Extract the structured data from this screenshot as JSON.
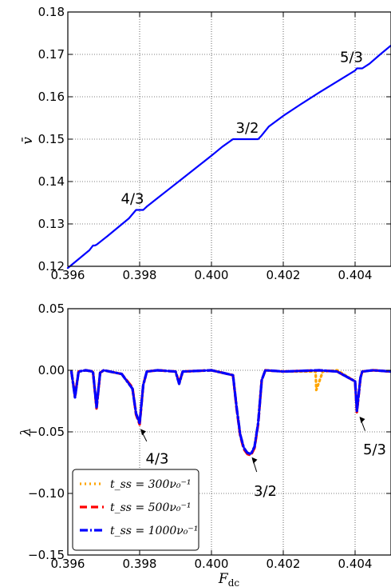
{
  "chart_data": [
    {
      "type": "line",
      "title": "",
      "xlabel": "",
      "ylabel": "v̄",
      "xlim": [
        0.396,
        0.405
      ],
      "ylim": [
        0.12,
        0.18
      ],
      "x_ticks": [
        "0.396",
        "0.398",
        "0.400",
        "0.402",
        "0.404"
      ],
      "y_ticks": [
        "0.12",
        "0.13",
        "0.14",
        "0.15",
        "0.16",
        "0.17",
        "0.18"
      ],
      "grid": true,
      "series": [
        {
          "color": "#0000ff",
          "x": [
            0.396,
            0.3963,
            0.3966,
            0.3967,
            0.39675,
            0.3968,
            0.3971,
            0.3974,
            0.3977,
            0.3979,
            0.39795,
            0.3981,
            0.3982,
            0.3985,
            0.3988,
            0.3991,
            0.3994,
            0.3997,
            0.4,
            0.4003,
            0.4006,
            0.40068,
            0.401,
            0.4013,
            0.40138,
            0.4016,
            0.402,
            0.4025,
            0.403,
            0.4035,
            0.404,
            0.40405,
            0.4042,
            0.4044,
            0.4047,
            0.405
          ],
          "y": [
            0.1196,
            0.1217,
            0.1238,
            0.1249,
            0.1249,
            0.1251,
            0.1271,
            0.1292,
            0.1313,
            0.1333,
            0.1333,
            0.1333,
            0.1341,
            0.1361,
            0.1381,
            0.1401,
            0.1421,
            0.1441,
            0.1461,
            0.1482,
            0.15,
            0.15,
            0.15,
            0.15,
            0.1507,
            0.153,
            0.1555,
            0.1583,
            0.161,
            0.1636,
            0.1662,
            0.1667,
            0.1667,
            0.1678,
            0.17,
            0.1721
          ]
        }
      ],
      "annotations": [
        {
          "text": "4/3",
          "x": 0.3978,
          "y": 0.1348
        },
        {
          "text": "3/2",
          "x": 0.401,
          "y": 0.1515
        },
        {
          "text": "5/3",
          "x": 0.4039,
          "y": 0.1682
        }
      ]
    },
    {
      "type": "line",
      "title": "",
      "xlabel": "F_dc",
      "ylabel": "λ",
      "xlim": [
        0.396,
        0.405
      ],
      "ylim": [
        -0.15,
        0.05
      ],
      "x_ticks": [
        "0.396",
        "0.398",
        "0.400",
        "0.402",
        "0.404"
      ],
      "y_ticks": [
        "−0.15",
        "−0.10",
        "−0.05",
        "0.00",
        "0.05"
      ],
      "grid": true,
      "legend_position": "bottom-left",
      "legend": [
        "t_ss = 300ν₀⁻¹",
        "t_ss = 500ν₀⁻¹",
        "t_ss = 1000ν₀⁻¹"
      ],
      "series": [
        {
          "name": "t_ss = 300ν₀⁻¹",
          "color": "#ffa500",
          "style": "dotted",
          "x": [
            0.3961,
            0.3962,
            0.3963,
            0.3965,
            0.3967,
            0.3968,
            0.3969,
            0.397,
            0.3975,
            0.3978,
            0.3979,
            0.398,
            0.3981,
            0.3982,
            0.3985,
            0.399,
            0.3991,
            0.3992,
            0.4,
            0.4006,
            0.4007,
            0.4008,
            0.4009,
            0.401,
            0.4011,
            0.4012,
            0.4013,
            0.4014,
            0.4015,
            0.402,
            0.4029,
            0.40292,
            0.4031,
            0.4035,
            0.404,
            0.40405,
            0.40415,
            0.4042,
            0.4045,
            0.405
          ],
          "y": [
            -0.001,
            -0.022,
            -0.001,
            0.0,
            -0.001,
            -0.03,
            -0.002,
            0.0,
            -0.003,
            -0.015,
            -0.035,
            -0.043,
            -0.012,
            -0.001,
            0.0,
            -0.001,
            -0.011,
            -0.001,
            0.0,
            -0.004,
            -0.03,
            -0.052,
            -0.063,
            -0.067,
            -0.068,
            -0.062,
            -0.043,
            -0.008,
            0.0,
            -0.001,
            -0.001,
            -0.016,
            -0.001,
            0.0,
            -0.009,
            -0.033,
            -0.006,
            -0.001,
            0.0,
            -0.001
          ]
        },
        {
          "name": "t_ss = 500ν₀⁻¹",
          "color": "#ff0000",
          "style": "dashed",
          "x": [
            0.3961,
            0.3962,
            0.3963,
            0.3965,
            0.3967,
            0.3968,
            0.3969,
            0.397,
            0.3975,
            0.3978,
            0.3979,
            0.398,
            0.3981,
            0.3982,
            0.3985,
            0.399,
            0.3991,
            0.3992,
            0.4,
            0.4006,
            0.4007,
            0.4008,
            0.4009,
            0.401,
            0.4011,
            0.4012,
            0.4013,
            0.4014,
            0.4015,
            0.402,
            0.403,
            0.4035,
            0.404,
            0.40405,
            0.40415,
            0.4042,
            0.4045,
            0.405
          ],
          "y": [
            -0.001,
            -0.021,
            -0.001,
            0.0,
            -0.001,
            -0.031,
            -0.002,
            0.0,
            -0.003,
            -0.014,
            -0.036,
            -0.044,
            -0.012,
            -0.001,
            0.0,
            -0.001,
            -0.01,
            -0.001,
            0.0,
            -0.004,
            -0.031,
            -0.053,
            -0.064,
            -0.068,
            -0.069,
            -0.063,
            -0.044,
            -0.008,
            0.0,
            -0.001,
            0.0,
            -0.001,
            -0.009,
            -0.034,
            -0.006,
            -0.001,
            0.0,
            -0.001
          ]
        },
        {
          "name": "t_ss = 1000ν₀⁻¹",
          "color": "#0000ff",
          "style": "dashdot",
          "x": [
            0.3961,
            0.3962,
            0.3963,
            0.3965,
            0.3967,
            0.3968,
            0.3969,
            0.397,
            0.3975,
            0.3978,
            0.3979,
            0.398,
            0.3981,
            0.3982,
            0.3985,
            0.399,
            0.3991,
            0.3992,
            0.4,
            0.4006,
            0.4007,
            0.4008,
            0.4009,
            0.401,
            0.4011,
            0.4012,
            0.4013,
            0.4014,
            0.4015,
            0.402,
            0.403,
            0.4035,
            0.404,
            0.40405,
            0.40415,
            0.4042,
            0.4045,
            0.405
          ],
          "y": [
            -0.001,
            -0.022,
            -0.001,
            0.0,
            -0.001,
            -0.03,
            -0.002,
            0.0,
            -0.003,
            -0.015,
            -0.035,
            -0.043,
            -0.012,
            -0.001,
            0.0,
            -0.001,
            -0.011,
            -0.001,
            0.0,
            -0.004,
            -0.03,
            -0.052,
            -0.063,
            -0.067,
            -0.068,
            -0.062,
            -0.043,
            -0.008,
            0.0,
            -0.001,
            0.0,
            -0.001,
            -0.009,
            -0.033,
            -0.006,
            -0.001,
            0.0,
            -0.001
          ]
        }
      ],
      "annotations": [
        {
          "text": "4/3",
          "x": 0.398,
          "y": -0.047
        },
        {
          "text": "3/2",
          "x": 0.4011,
          "y": -0.07
        },
        {
          "text": "5/3",
          "x": 0.4041,
          "y": -0.037
        }
      ]
    }
  ]
}
